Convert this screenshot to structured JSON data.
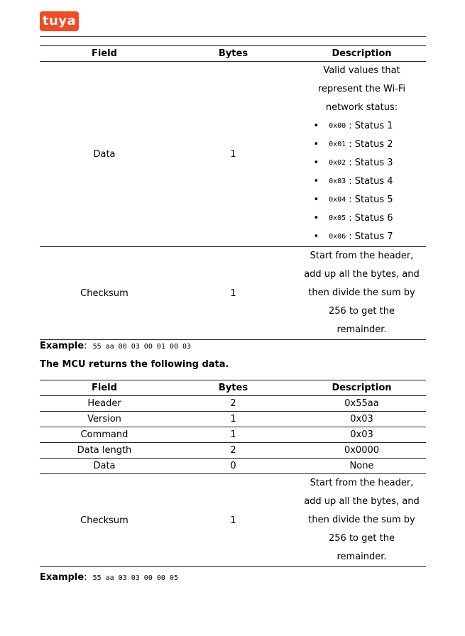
{
  "logo": {
    "text": "tuya",
    "color": "#f04b23"
  },
  "table1": {
    "headers": [
      "Field",
      "Bytes",
      "Description"
    ],
    "data_row": {
      "field": "Data",
      "bytes": "1",
      "desc_lines": [
        "Valid values that",
        "represent the Wi-Fi",
        "network status:"
      ],
      "bullets": [
        {
          "code": "0x00",
          "text": ": Status 1"
        },
        {
          "code": "0x01",
          "text": ": Status 2"
        },
        {
          "code": "0x02",
          "text": ": Status 3"
        },
        {
          "code": "0x03",
          "text": ": Status 4"
        },
        {
          "code": "0x04",
          "text": ": Status 5"
        },
        {
          "code": "0x05",
          "text": ": Status 6"
        },
        {
          "code": "0x06",
          "text": ": Status 7"
        }
      ]
    },
    "checksum_row": {
      "field": "Checksum",
      "bytes": "1",
      "desc_lines": [
        "Start from the header,",
        "add up all the bytes, and",
        "then divide the sum by",
        "256 to get the",
        "remainder."
      ]
    }
  },
  "example1": {
    "label": "Example",
    "code": "55 aa 00 03 00 01 00 03"
  },
  "paragraph": "The MCU returns the following data.",
  "table2": {
    "headers": [
      "Field",
      "Bytes",
      "Description"
    ],
    "rows": [
      [
        "Header",
        "2",
        "0x55aa"
      ],
      [
        "Version",
        "1",
        "0x03"
      ],
      [
        "Command",
        "1",
        "0x03"
      ],
      [
        "Data length",
        "2",
        "0x0000"
      ],
      [
        "Data",
        "0",
        "None"
      ]
    ],
    "checksum_row": {
      "field": "Checksum",
      "bytes": "1",
      "desc_lines": [
        "Start from the header,",
        "add up all the bytes, and",
        "then divide the sum by",
        "256 to get the",
        "remainder."
      ]
    }
  },
  "example2": {
    "label": "Example",
    "code": "55 aa 03 03 00 00 05"
  }
}
